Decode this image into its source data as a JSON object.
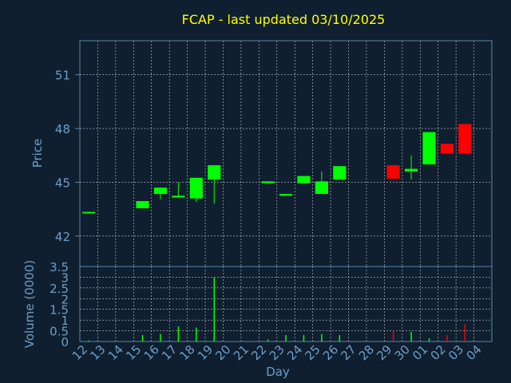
{
  "title": "FCAP - last updated 03/10/2025",
  "chart_data": [
    {
      "type": "candlestick",
      "ylabel": "Price",
      "ylim": [
        40.3,
        52.9
      ],
      "yticks": [
        42,
        45,
        48,
        51
      ],
      "colors": {
        "up": "#00ff00",
        "down": "#ff0000"
      },
      "x": [
        "12",
        "13",
        "14",
        "15",
        "16",
        "17",
        "18",
        "19",
        "20",
        "21",
        "22",
        "23",
        "24",
        "25",
        "26",
        "27",
        "28",
        "29",
        "30",
        "01",
        "02",
        "03",
        "04"
      ],
      "candles": [
        {
          "x": "12",
          "open": 43.35,
          "close": 43.35,
          "high": 43.35,
          "low": 43.35,
          "dir": "up"
        },
        {
          "x": "15",
          "open": 43.55,
          "close": 43.95,
          "high": 43.95,
          "low": 43.55,
          "dir": "up"
        },
        {
          "x": "16",
          "open": 44.35,
          "close": 44.7,
          "high": 44.7,
          "low": 44.05,
          "dir": "up"
        },
        {
          "x": "17",
          "open": 44.15,
          "close": 44.25,
          "high": 45.0,
          "low": 44.15,
          "dir": "up"
        },
        {
          "x": "18",
          "open": 44.1,
          "close": 45.25,
          "high": 45.25,
          "low": 43.9,
          "dir": "up"
        },
        {
          "x": "19",
          "open": 45.15,
          "close": 45.95,
          "high": 45.95,
          "low": 43.8,
          "dir": "up"
        },
        {
          "x": "22",
          "open": 44.95,
          "close": 45.05,
          "high": 45.05,
          "low": 44.95,
          "dir": "up"
        },
        {
          "x": "23",
          "open": 44.25,
          "close": 44.35,
          "high": 44.35,
          "low": 44.25,
          "dir": "up"
        },
        {
          "x": "24",
          "open": 44.95,
          "close": 45.35,
          "high": 45.35,
          "low": 44.95,
          "dir": "up"
        },
        {
          "x": "25",
          "open": 44.35,
          "close": 45.05,
          "high": 45.6,
          "low": 44.35,
          "dir": "up"
        },
        {
          "x": "26",
          "open": 45.15,
          "close": 45.9,
          "high": 45.9,
          "low": 45.15,
          "dir": "up"
        },
        {
          "x": "29",
          "open": 45.95,
          "close": 45.2,
          "high": 45.95,
          "low": 45.2,
          "dir": "down"
        },
        {
          "x": "30",
          "open": 45.6,
          "close": 45.75,
          "high": 46.5,
          "low": 45.15,
          "dir": "up"
        },
        {
          "x": "01",
          "open": 46.0,
          "close": 47.8,
          "high": 47.8,
          "low": 46.0,
          "dir": "up"
        },
        {
          "x": "02",
          "open": 47.15,
          "close": 46.6,
          "high": 47.15,
          "low": 46.6,
          "dir": "down"
        },
        {
          "x": "03",
          "open": 48.25,
          "close": 46.6,
          "high": 48.25,
          "low": 46.6,
          "dir": "down"
        }
      ]
    },
    {
      "type": "bar",
      "xlabel": "Day",
      "ylabel": "Volume (0000)",
      "ylim": [
        0,
        3.5
      ],
      "yticks": [
        "0",
        "0.5",
        "1",
        "1.5",
        "2",
        "2.5",
        "3",
        "3.5"
      ],
      "tick_values": [
        0,
        0.5,
        1,
        1.5,
        2,
        2.5,
        3,
        3.5
      ],
      "x": [
        "12",
        "13",
        "14",
        "15",
        "16",
        "17",
        "18",
        "19",
        "20",
        "21",
        "22",
        "23",
        "24",
        "25",
        "26",
        "27",
        "28",
        "29",
        "30",
        "01",
        "02",
        "03",
        "04"
      ],
      "bars": [
        {
          "x": "12",
          "value": 0.05,
          "dir": "up"
        },
        {
          "x": "15",
          "value": 0.3,
          "dir": "up"
        },
        {
          "x": "16",
          "value": 0.35,
          "dir": "up"
        },
        {
          "x": "17",
          "value": 0.7,
          "dir": "up"
        },
        {
          "x": "18",
          "value": 0.65,
          "dir": "up"
        },
        {
          "x": "19",
          "value": 3.0,
          "dir": "up"
        },
        {
          "x": "22",
          "value": 0.1,
          "dir": "up"
        },
        {
          "x": "23",
          "value": 0.3,
          "dir": "up"
        },
        {
          "x": "24",
          "value": 0.3,
          "dir": "up"
        },
        {
          "x": "25",
          "value": 0.35,
          "dir": "up"
        },
        {
          "x": "26",
          "value": 0.3,
          "dir": "up"
        },
        {
          "x": "29",
          "value": 0.5,
          "dir": "down"
        },
        {
          "x": "30",
          "value": 0.45,
          "dir": "up"
        },
        {
          "x": "01",
          "value": 0.15,
          "dir": "up"
        },
        {
          "x": "02",
          "value": 0.3,
          "dir": "down"
        },
        {
          "x": "03",
          "value": 0.8,
          "dir": "down"
        }
      ]
    }
  ]
}
